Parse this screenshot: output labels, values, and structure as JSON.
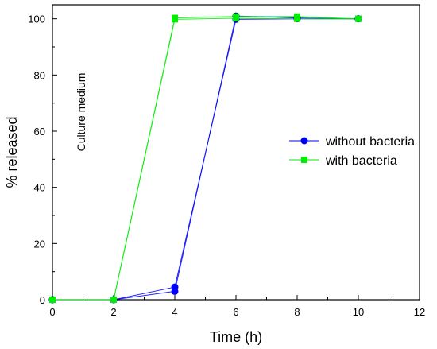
{
  "chart_data": {
    "type": "line",
    "xlabel": "Time (h)",
    "ylabel": "% released",
    "xlim": [
      0,
      12
    ],
    "ylim": [
      0,
      105
    ],
    "x_ticks": [
      0,
      2,
      4,
      6,
      8,
      10,
      12
    ],
    "y_ticks": [
      0,
      20,
      40,
      60,
      80,
      100
    ],
    "grid": false,
    "legend_position": "right",
    "annotation": "Culture medium",
    "series": [
      {
        "name": "without bacteria",
        "color": "#0000ff",
        "marker": "circle",
        "replicates": [
          [
            [
              0,
              0
            ],
            [
              2,
              0
            ],
            [
              4,
              3.0
            ],
            [
              6,
              101.0
            ],
            [
              8,
              100.3
            ],
            [
              10,
              100.0
            ]
          ],
          [
            [
              0,
              0
            ],
            [
              2,
              0
            ],
            [
              4,
              4.5
            ],
            [
              6,
              99.8
            ],
            [
              8,
              100.0
            ],
            [
              10,
              100.0
            ]
          ]
        ]
      },
      {
        "name": "with bacteria",
        "color": "#00ee00",
        "marker": "square",
        "replicates": [
          [
            [
              0,
              0
            ],
            [
              2,
              0
            ],
            [
              4,
              100.3
            ],
            [
              6,
              100.8
            ],
            [
              8,
              100.8
            ],
            [
              10,
              100.0
            ]
          ],
          [
            [
              0,
              0
            ],
            [
              2,
              0
            ],
            [
              4,
              99.8
            ],
            [
              6,
              100.2
            ],
            [
              8,
              100.0
            ],
            [
              10,
              100.0
            ]
          ]
        ]
      }
    ]
  }
}
